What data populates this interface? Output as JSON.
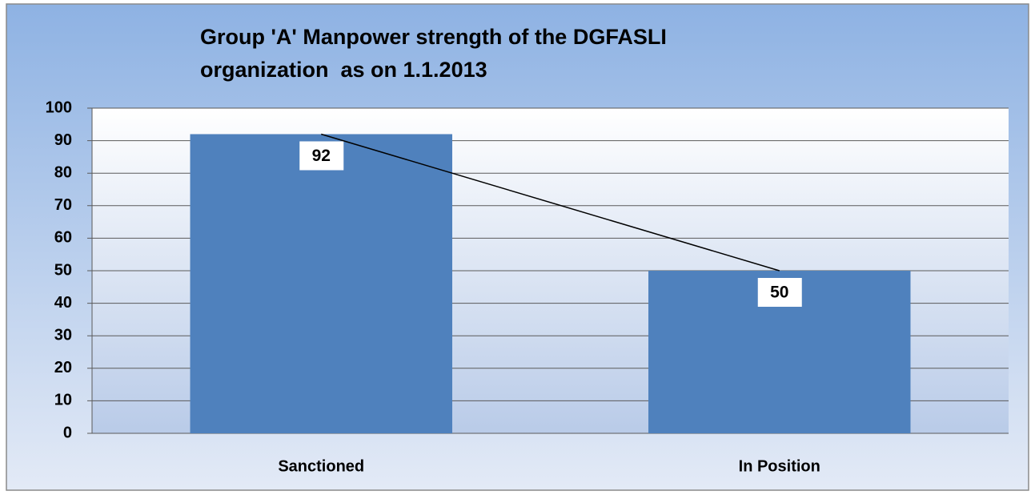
{
  "chart_data": {
    "type": "bar",
    "title": [
      "Group 'A' Manpower strength of the DGFASLI",
      "organization  as on 1.1.2013"
    ],
    "categories": [
      "Sanctioned",
      "In Position"
    ],
    "values": [
      92,
      50
    ],
    "color": "#4f81bd",
    "line": true,
    "ylim": [
      0,
      100
    ],
    "yticks": [
      0,
      10,
      20,
      30,
      40,
      50,
      60,
      70,
      80,
      90,
      100
    ],
    "grid": true
  }
}
